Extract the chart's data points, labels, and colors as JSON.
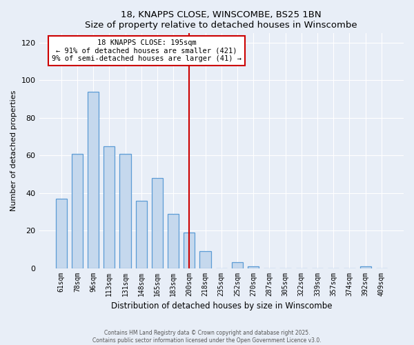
{
  "title": "18, KNAPPS CLOSE, WINSCOMBE, BS25 1BN",
  "subtitle": "Size of property relative to detached houses in Winscombe",
  "xlabel": "Distribution of detached houses by size in Winscombe",
  "ylabel": "Number of detached properties",
  "bar_labels": [
    "61sqm",
    "78sqm",
    "96sqm",
    "113sqm",
    "131sqm",
    "148sqm",
    "165sqm",
    "183sqm",
    "200sqm",
    "218sqm",
    "235sqm",
    "252sqm",
    "270sqm",
    "287sqm",
    "305sqm",
    "322sqm",
    "339sqm",
    "357sqm",
    "374sqm",
    "392sqm",
    "409sqm"
  ],
  "bar_values": [
    37,
    61,
    94,
    65,
    61,
    36,
    48,
    29,
    19,
    9,
    0,
    3,
    1,
    0,
    0,
    0,
    0,
    0,
    0,
    1,
    0
  ],
  "bar_color": "#c5d8ed",
  "bar_edge_color": "#5b9bd5",
  "ylim": [
    0,
    125
  ],
  "yticks": [
    0,
    20,
    40,
    60,
    80,
    100,
    120
  ],
  "vline_color": "#cc0000",
  "annotation_title": "18 KNAPPS CLOSE: 195sqm",
  "annotation_line1": "← 91% of detached houses are smaller (421)",
  "annotation_line2": "9% of semi-detached houses are larger (41) →",
  "footer1": "Contains HM Land Registry data © Crown copyright and database right 2025.",
  "footer2": "Contains public sector information licensed under the Open Government Licence v3.0.",
  "bg_color": "#e8eef7"
}
